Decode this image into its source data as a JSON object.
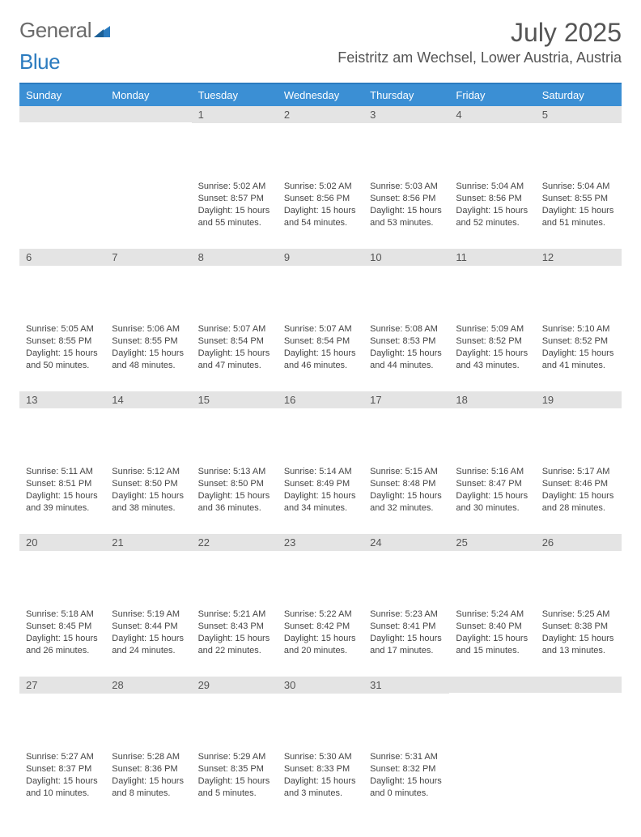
{
  "logo": {
    "text1": "General",
    "text2": "Blue"
  },
  "title": "July 2025",
  "location": "Feistritz am Wechsel, Lower Austria, Austria",
  "colors": {
    "accent": "#3b8fd4",
    "rule": "#2b7bbf",
    "daybg": "#e4e4e4"
  },
  "day_headers": [
    "Sunday",
    "Monday",
    "Tuesday",
    "Wednesday",
    "Thursday",
    "Friday",
    "Saturday"
  ],
  "weeks": [
    [
      null,
      null,
      {
        "n": "1",
        "sr": "5:02 AM",
        "ss": "8:57 PM",
        "dl": "15 hours and 55 minutes."
      },
      {
        "n": "2",
        "sr": "5:02 AM",
        "ss": "8:56 PM",
        "dl": "15 hours and 54 minutes."
      },
      {
        "n": "3",
        "sr": "5:03 AM",
        "ss": "8:56 PM",
        "dl": "15 hours and 53 minutes."
      },
      {
        "n": "4",
        "sr": "5:04 AM",
        "ss": "8:56 PM",
        "dl": "15 hours and 52 minutes."
      },
      {
        "n": "5",
        "sr": "5:04 AM",
        "ss": "8:55 PM",
        "dl": "15 hours and 51 minutes."
      }
    ],
    [
      {
        "n": "6",
        "sr": "5:05 AM",
        "ss": "8:55 PM",
        "dl": "15 hours and 50 minutes."
      },
      {
        "n": "7",
        "sr": "5:06 AM",
        "ss": "8:55 PM",
        "dl": "15 hours and 48 minutes."
      },
      {
        "n": "8",
        "sr": "5:07 AM",
        "ss": "8:54 PM",
        "dl": "15 hours and 47 minutes."
      },
      {
        "n": "9",
        "sr": "5:07 AM",
        "ss": "8:54 PM",
        "dl": "15 hours and 46 minutes."
      },
      {
        "n": "10",
        "sr": "5:08 AM",
        "ss": "8:53 PM",
        "dl": "15 hours and 44 minutes."
      },
      {
        "n": "11",
        "sr": "5:09 AM",
        "ss": "8:52 PM",
        "dl": "15 hours and 43 minutes."
      },
      {
        "n": "12",
        "sr": "5:10 AM",
        "ss": "8:52 PM",
        "dl": "15 hours and 41 minutes."
      }
    ],
    [
      {
        "n": "13",
        "sr": "5:11 AM",
        "ss": "8:51 PM",
        "dl": "15 hours and 39 minutes."
      },
      {
        "n": "14",
        "sr": "5:12 AM",
        "ss": "8:50 PM",
        "dl": "15 hours and 38 minutes."
      },
      {
        "n": "15",
        "sr": "5:13 AM",
        "ss": "8:50 PM",
        "dl": "15 hours and 36 minutes."
      },
      {
        "n": "16",
        "sr": "5:14 AM",
        "ss": "8:49 PM",
        "dl": "15 hours and 34 minutes."
      },
      {
        "n": "17",
        "sr": "5:15 AM",
        "ss": "8:48 PM",
        "dl": "15 hours and 32 minutes."
      },
      {
        "n": "18",
        "sr": "5:16 AM",
        "ss": "8:47 PM",
        "dl": "15 hours and 30 minutes."
      },
      {
        "n": "19",
        "sr": "5:17 AM",
        "ss": "8:46 PM",
        "dl": "15 hours and 28 minutes."
      }
    ],
    [
      {
        "n": "20",
        "sr": "5:18 AM",
        "ss": "8:45 PM",
        "dl": "15 hours and 26 minutes."
      },
      {
        "n": "21",
        "sr": "5:19 AM",
        "ss": "8:44 PM",
        "dl": "15 hours and 24 minutes."
      },
      {
        "n": "22",
        "sr": "5:21 AM",
        "ss": "8:43 PM",
        "dl": "15 hours and 22 minutes."
      },
      {
        "n": "23",
        "sr": "5:22 AM",
        "ss": "8:42 PM",
        "dl": "15 hours and 20 minutes."
      },
      {
        "n": "24",
        "sr": "5:23 AM",
        "ss": "8:41 PM",
        "dl": "15 hours and 17 minutes."
      },
      {
        "n": "25",
        "sr": "5:24 AM",
        "ss": "8:40 PM",
        "dl": "15 hours and 15 minutes."
      },
      {
        "n": "26",
        "sr": "5:25 AM",
        "ss": "8:38 PM",
        "dl": "15 hours and 13 minutes."
      }
    ],
    [
      {
        "n": "27",
        "sr": "5:27 AM",
        "ss": "8:37 PM",
        "dl": "15 hours and 10 minutes."
      },
      {
        "n": "28",
        "sr": "5:28 AM",
        "ss": "8:36 PM",
        "dl": "15 hours and 8 minutes."
      },
      {
        "n": "29",
        "sr": "5:29 AM",
        "ss": "8:35 PM",
        "dl": "15 hours and 5 minutes."
      },
      {
        "n": "30",
        "sr": "5:30 AM",
        "ss": "8:33 PM",
        "dl": "15 hours and 3 minutes."
      },
      {
        "n": "31",
        "sr": "5:31 AM",
        "ss": "8:32 PM",
        "dl": "15 hours and 0 minutes."
      },
      null,
      null
    ]
  ],
  "labels": {
    "sunrise": "Sunrise:",
    "sunset": "Sunset:",
    "daylight": "Daylight:"
  }
}
